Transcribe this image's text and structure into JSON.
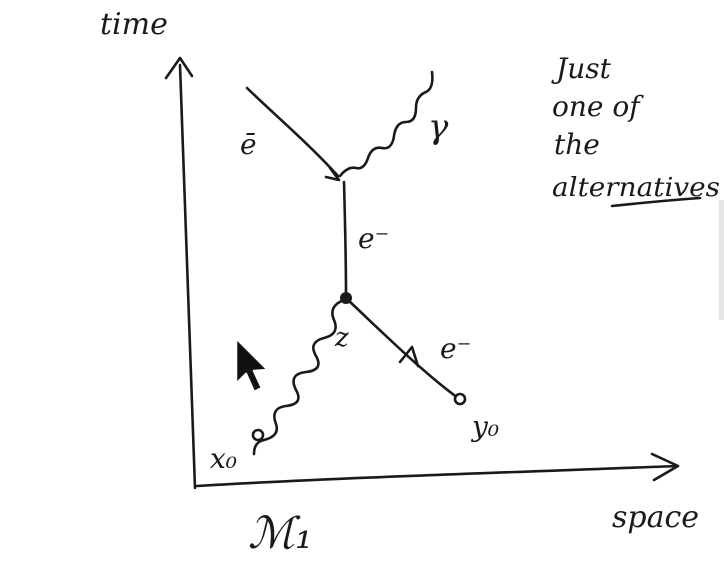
{
  "axes": {
    "time_label": "time",
    "space_label": "space"
  },
  "particles": {
    "electron_in": "ē",
    "electron_mid": "e⁻",
    "electron_right": "e⁻",
    "photon": "γ",
    "vertex_z": "z",
    "point_x0": "x₀",
    "point_y0": "y₀"
  },
  "caption": {
    "figure_label": "ℳ₁"
  },
  "note": {
    "line1": "Just",
    "line2": "one of",
    "line3": "the",
    "line4": "alternatives"
  },
  "colors": {
    "ink": "#1a1a1a"
  },
  "icons": {
    "cursor": "mouse-pointer-icon"
  }
}
